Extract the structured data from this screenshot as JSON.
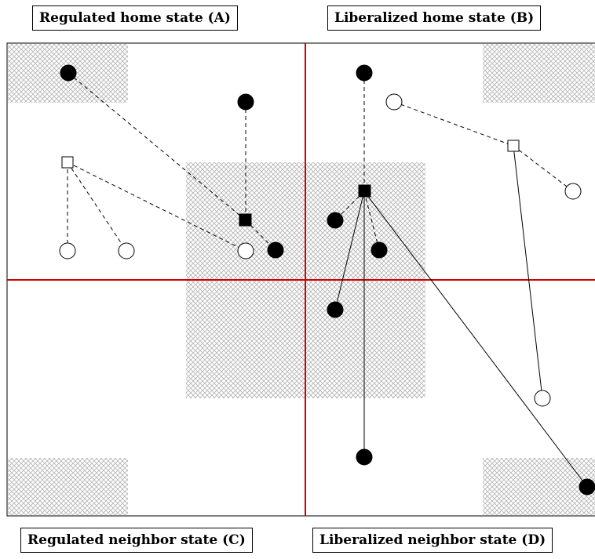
{
  "labels": {
    "A": "Regulated home state (A)",
    "B": "Liberalized home state (B)",
    "C": "Regulated neighbor state (C)",
    "D": "Liberalized neighbor state (D)"
  },
  "colors": {
    "divider": "#d40000",
    "frame": "#000000",
    "hatch": "#b0b0b0"
  }
}
